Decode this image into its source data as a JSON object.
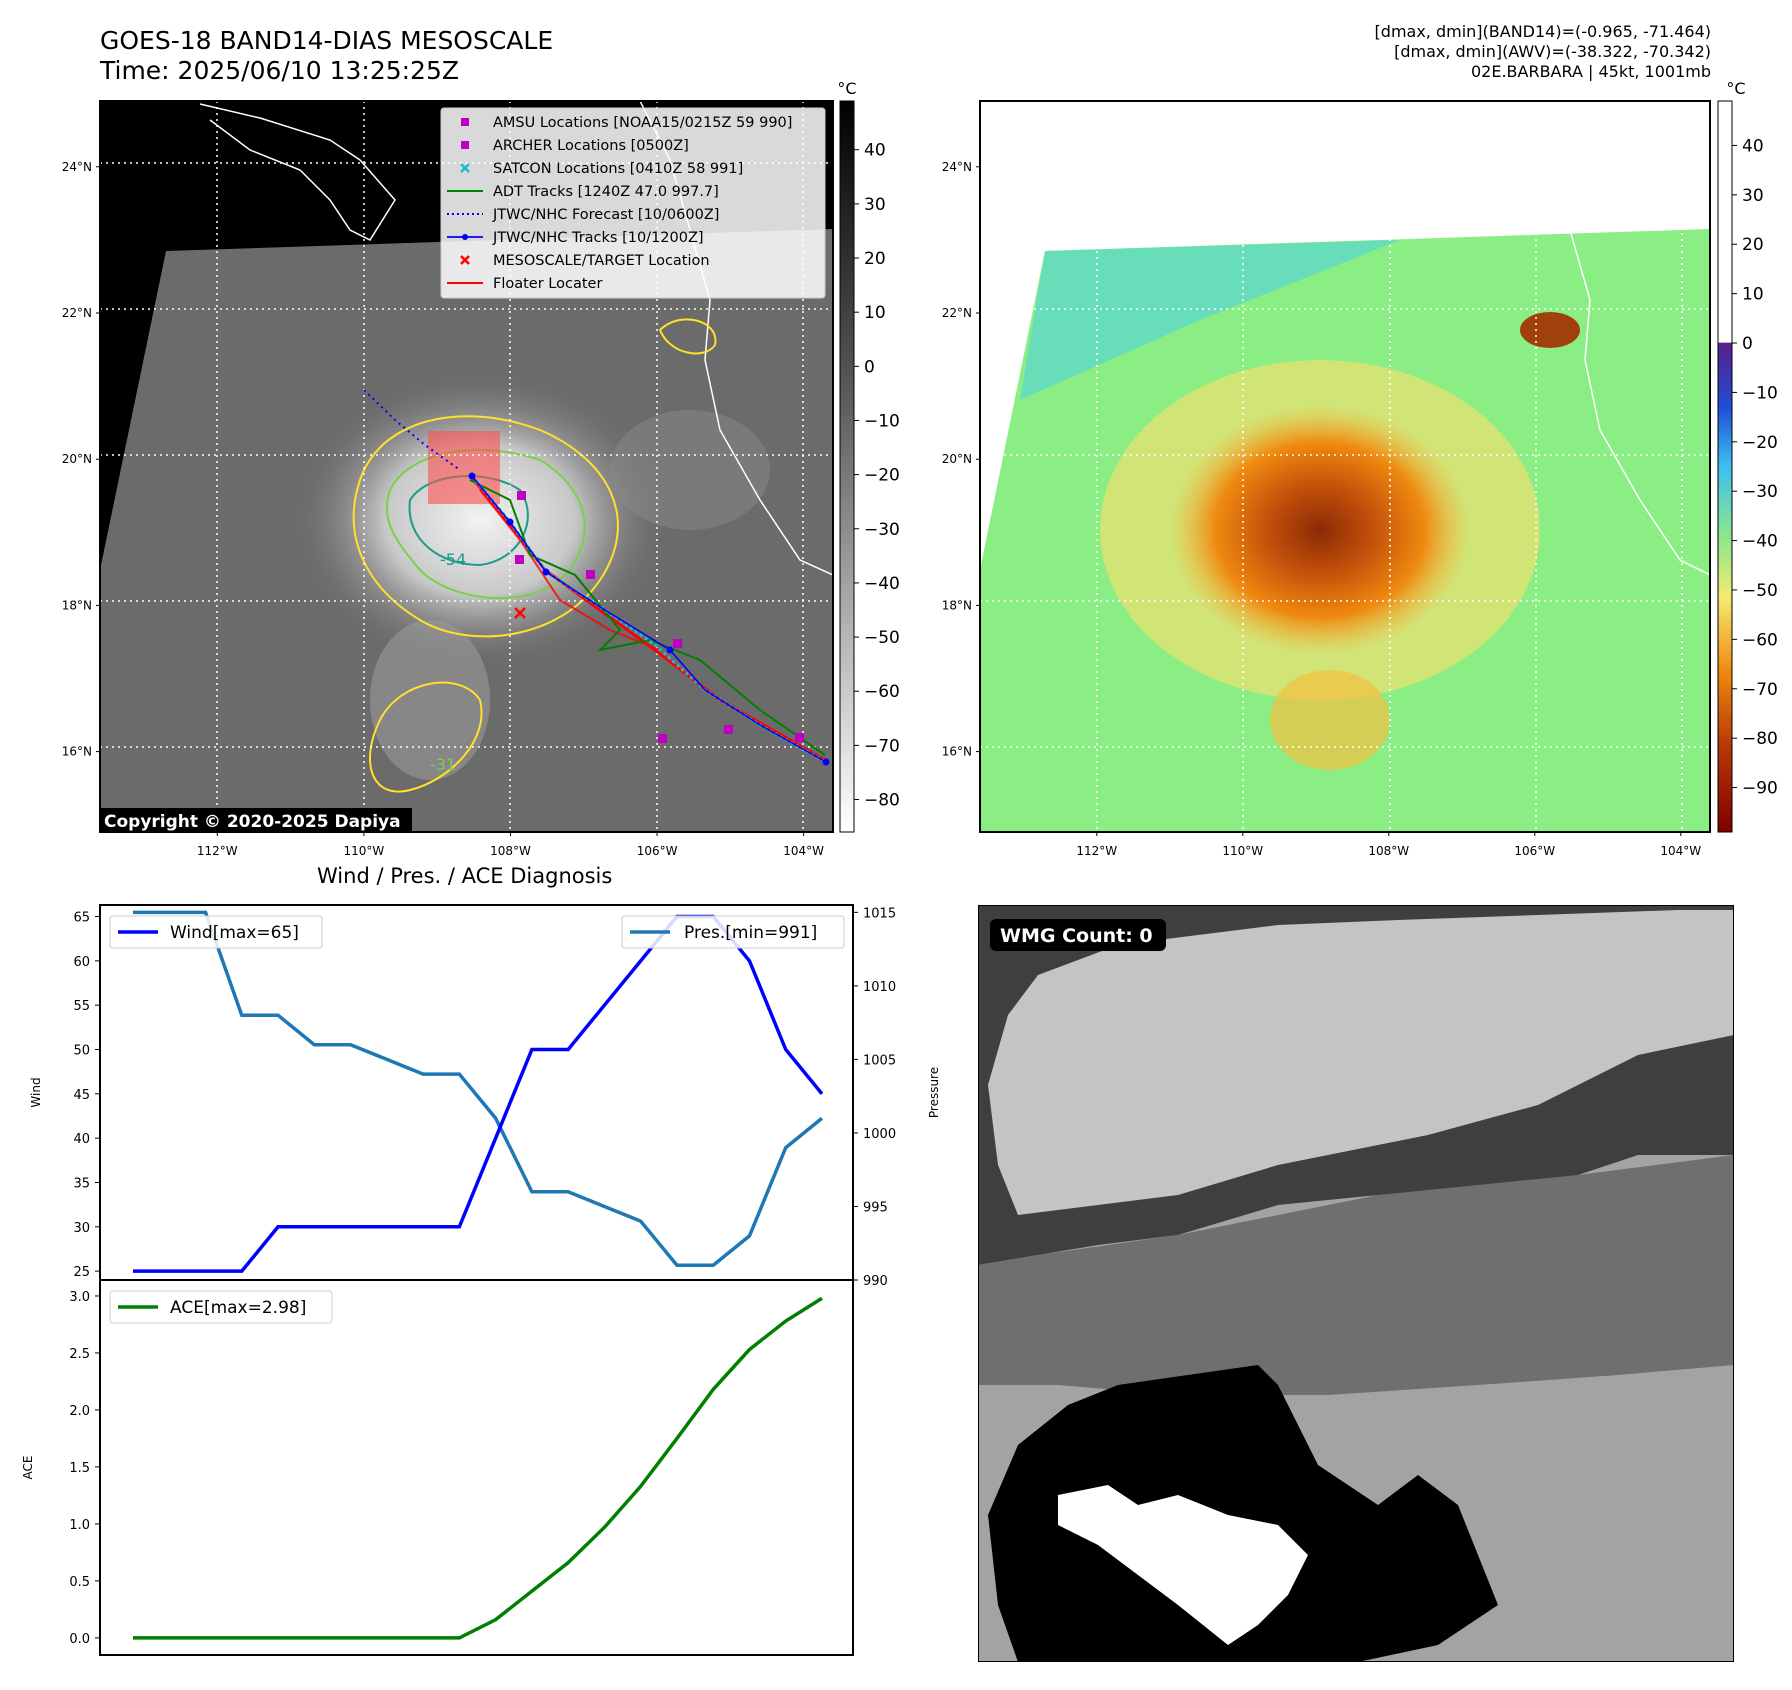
{
  "header": {
    "title": "GOES-18 BAND14-DIAS MESOSCALE",
    "time": "Time: 2025/06/10 13:25:25Z",
    "info_lines": [
      "[dmax, dmin](BAND14)=(-0.965, -71.464)",
      "[dmax, dmin](AWV)=(-38.322, -70.342)",
      "02E.BARBARA | 45kt, 1001mb"
    ]
  },
  "map_axes": {
    "lat_labels": [
      "24°N",
      "22°N",
      "20°N",
      "18°N",
      "16°N"
    ],
    "lat_values": [
      24,
      22,
      20,
      18,
      16
    ],
    "lon_labels": [
      "112°W",
      "110°W",
      "108°W",
      "106°W",
      "104°W"
    ],
    "lon_values": [
      -112,
      -110,
      -108,
      -106,
      -104
    ],
    "lat_range": [
      14.9,
      24.9
    ],
    "lon_range": [
      -113.6,
      -103.6
    ]
  },
  "ir_panel": {
    "colorbar_unit": "°C",
    "colorbar_ticks": [
      "40",
      "30",
      "20",
      "10",
      "0",
      "−10",
      "−20",
      "−30",
      "−40",
      "−50",
      "−60",
      "−70",
      "−80"
    ],
    "colorbar_values": [
      40,
      30,
      20,
      10,
      0,
      -10,
      -20,
      -30,
      -40,
      -50,
      -60,
      -70,
      -80
    ],
    "colorbar_range": [
      -86,
      49
    ],
    "contour_label_54": "-54",
    "contour_label_31": "-31",
    "copyright": "Copyright © 2020-2025 Dapiya",
    "legend": [
      {
        "label": "AMSU Locations [NOAA15/0215Z 59 990]",
        "marker": "square",
        "color": "#c000c0"
      },
      {
        "label": "ARCHER Locations [0500Z]",
        "marker": "square",
        "color": "#c000c0"
      },
      {
        "label": "SATCON Locations [0410Z 58 991]",
        "marker": "x",
        "color": "#17becf"
      },
      {
        "label": "ADT Tracks [1240Z 47.0 997.7]",
        "marker": "line",
        "color": "#008000"
      },
      {
        "label": "JTWC/NHC Forecast [10/0600Z]",
        "marker": "dotted",
        "color": "#0000ff"
      },
      {
        "label": "JTWC/NHC Tracks [10/1200Z]",
        "marker": "line-dot",
        "color": "#0000ff"
      },
      {
        "label": "MESOSCALE/TARGET Location",
        "marker": "x",
        "color": "#ff0000"
      },
      {
        "label": "Floater Locater",
        "marker": "line",
        "color": "#ff0000"
      }
    ]
  },
  "awv_panel": {
    "colorbar_unit": "°C",
    "colorbar_ticks": [
      "40",
      "30",
      "20",
      "10",
      "0",
      "−10",
      "−20",
      "−30",
      "−40",
      "−50",
      "−60",
      "−70",
      "−80",
      "−90"
    ],
    "colorbar_values": [
      40,
      30,
      20,
      10,
      0,
      -10,
      -20,
      -30,
      -40,
      -50,
      -60,
      -70,
      -80,
      -90
    ],
    "colorbar_range": [
      -99,
      49
    ]
  },
  "wmg_panel": {
    "badge": "WMG Count: 0"
  },
  "chart_data": [
    {
      "type": "line",
      "title": "Wind / Pres. / ACE Diagnosis",
      "ylabel": "Wind",
      "ylabel_right": "Pressure",
      "ylim": [
        24,
        66.3
      ],
      "ylim_right": [
        990,
        1015.5
      ],
      "yticks": [
        25,
        30,
        35,
        40,
        45,
        50,
        55,
        60,
        65
      ],
      "yticks_right": [
        990,
        995,
        1000,
        1005,
        1010,
        1015
      ],
      "series": [
        {
          "name": "Wind[max=65]",
          "axis": "left",
          "color": "#0000ff",
          "values": [
            25,
            25,
            25,
            25,
            30,
            30,
            30,
            30,
            30,
            30,
            40,
            50,
            50,
            55,
            60,
            65,
            65,
            60,
            50,
            45
          ]
        },
        {
          "name": "Pres.[min=991]",
          "axis": "right",
          "color": "#1f77b4",
          "values": [
            1015,
            1015,
            1015,
            1008,
            1008,
            1006,
            1006,
            1005,
            1004,
            1004,
            1001,
            996,
            996,
            995,
            994,
            991,
            991,
            993,
            999,
            1001
          ]
        }
      ]
    },
    {
      "type": "line",
      "ylabel": "ACE",
      "ylim": [
        -0.15,
        3.14
      ],
      "yticks": [
        "0.0",
        "0.5",
        "1.0",
        "1.5",
        "2.0",
        "2.5",
        "3.0"
      ],
      "series": [
        {
          "name": "ACE[max=2.98]",
          "color": "#008000",
          "values": [
            0,
            0,
            0,
            0,
            0,
            0,
            0,
            0,
            0,
            0,
            0.16,
            0.41,
            0.66,
            0.97,
            1.33,
            1.75,
            2.18,
            2.53,
            2.78,
            2.98
          ]
        }
      ]
    }
  ]
}
